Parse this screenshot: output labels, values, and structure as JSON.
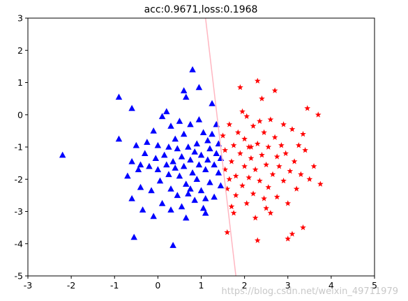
{
  "chart_data": {
    "type": "scatter",
    "title": "acc:0.9671,loss:0.1968",
    "xlim": [
      -3,
      5
    ],
    "ylim": [
      -5,
      3
    ],
    "xticks": [
      "-3",
      "-2",
      "-1",
      "0",
      "1",
      "2",
      "3",
      "4",
      "5"
    ],
    "yticks": [
      "3",
      "2",
      "1",
      "0",
      "-1",
      "-2",
      "-3",
      "-4",
      "-5"
    ],
    "grid": false,
    "legend": "none",
    "decision_boundary": {
      "x": [
        1.1,
        1.8
      ],
      "y": [
        3,
        -5
      ],
      "color": "#ffb6c1"
    },
    "series": [
      {
        "marker": "triangle",
        "color": "#0000ff",
        "points": [
          [
            -2.2,
            -1.25
          ],
          [
            -0.9,
            0.55
          ],
          [
            -0.9,
            -0.75
          ],
          [
            -0.7,
            -1.9
          ],
          [
            -0.6,
            -1.45
          ],
          [
            -0.6,
            -2.6
          ],
          [
            -0.55,
            -3.8
          ],
          [
            -0.6,
            0.2
          ],
          [
            -0.5,
            -0.95
          ],
          [
            -0.45,
            -1.7
          ],
          [
            -0.4,
            -1.55
          ],
          [
            -0.4,
            -2.25
          ],
          [
            -0.35,
            -2.95
          ],
          [
            -0.3,
            -1.2
          ],
          [
            -0.25,
            -0.85
          ],
          [
            -0.2,
            -1.6
          ],
          [
            -0.15,
            -2.35
          ],
          [
            -0.1,
            -0.5
          ],
          [
            -0.1,
            -3.15
          ],
          [
            -0.05,
            -1.35
          ],
          [
            0.0,
            -0.95
          ],
          [
            0.0,
            -1.7
          ],
          [
            0.05,
            -2.05
          ],
          [
            0.1,
            -2.75
          ],
          [
            0.1,
            -0.05
          ],
          [
            0.15,
            -1.25
          ],
          [
            0.2,
            -1.55
          ],
          [
            0.25,
            -1.0
          ],
          [
            0.25,
            -1.85
          ],
          [
            0.3,
            -0.35
          ],
          [
            0.3,
            -2.3
          ],
          [
            0.35,
            -1.45
          ],
          [
            0.35,
            -4.05
          ],
          [
            0.4,
            -0.75
          ],
          [
            0.4,
            -1.65
          ],
          [
            0.45,
            -2.5
          ],
          [
            0.45,
            -1.05
          ],
          [
            0.5,
            -0.2
          ],
          [
            0.5,
            -1.9
          ],
          [
            0.55,
            -2.85
          ],
          [
            0.55,
            -1.3
          ],
          [
            0.6,
            0.75
          ],
          [
            0.6,
            -0.6
          ],
          [
            0.6,
            -1.6
          ],
          [
            0.65,
            -2.15
          ],
          [
            0.65,
            -3.2
          ],
          [
            0.7,
            -1.0
          ],
          [
            0.7,
            -2.45
          ],
          [
            0.75,
            -1.4
          ],
          [
            0.75,
            -0.3
          ],
          [
            0.8,
            -1.8
          ],
          [
            0.8,
            1.4
          ],
          [
            0.85,
            -2.65
          ],
          [
            0.85,
            -1.15
          ],
          [
            0.9,
            -0.9
          ],
          [
            0.9,
            -2.0
          ],
          [
            0.95,
            -0.15
          ],
          [
            0.95,
            -1.55
          ],
          [
            1.0,
            -1.25
          ],
          [
            1.0,
            -2.35
          ],
          [
            1.05,
            -0.55
          ],
          [
            1.05,
            -2.9
          ],
          [
            1.1,
            -1.7
          ],
          [
            1.1,
            -3.05
          ],
          [
            1.15,
            -0.8
          ],
          [
            1.15,
            -1.4
          ],
          [
            1.2,
            -2.1
          ],
          [
            1.2,
            -1.05
          ],
          [
            1.25,
            0.35
          ],
          [
            1.25,
            -0.6
          ],
          [
            1.3,
            -1.55
          ],
          [
            1.3,
            -2.55
          ],
          [
            1.35,
            -0.3
          ],
          [
            1.35,
            -1.2
          ],
          [
            1.4,
            -0.9
          ],
          [
            1.4,
            -1.8
          ],
          [
            1.45,
            -2.2
          ],
          [
            1.45,
            -1.35
          ],
          [
            0.2,
            0.1
          ],
          [
            0.95,
            0.85
          ],
          [
            0.65,
            0.55
          ],
          [
            1.1,
            -2.6
          ],
          [
            0.3,
            -2.95
          ],
          [
            0.75,
            -2.3
          ]
        ]
      },
      {
        "marker": "star",
        "color": "#ff0000",
        "points": [
          [
            1.5,
            -0.65
          ],
          [
            1.55,
            -1.1
          ],
          [
            1.55,
            -1.7
          ],
          [
            1.6,
            -2.3
          ],
          [
            1.6,
            -3.65
          ],
          [
            1.65,
            -0.3
          ],
          [
            1.7,
            -1.45
          ],
          [
            1.7,
            -2.85
          ],
          [
            1.75,
            -0.95
          ],
          [
            1.8,
            -1.9
          ],
          [
            1.8,
            -2.5
          ],
          [
            1.85,
            -0.55
          ],
          [
            1.9,
            -1.2
          ],
          [
            1.9,
            0.85
          ],
          [
            1.95,
            -2.2
          ],
          [
            2.0,
            -0.75
          ],
          [
            2.0,
            -1.6
          ],
          [
            2.05,
            -2.75
          ],
          [
            2.05,
            -0.05
          ],
          [
            2.1,
            -1.0
          ],
          [
            2.1,
            -1.95
          ],
          [
            2.15,
            -1.35
          ],
          [
            2.2,
            -0.35
          ],
          [
            2.2,
            -2.45
          ],
          [
            2.25,
            -3.2
          ],
          [
            2.25,
            -1.7
          ],
          [
            2.3,
            -0.9
          ],
          [
            2.3,
            1.05
          ],
          [
            2.3,
            -3.9
          ],
          [
            2.35,
            -2.05
          ],
          [
            2.4,
            -1.25
          ],
          [
            2.4,
            0.5
          ],
          [
            2.45,
            -0.55
          ],
          [
            2.45,
            -2.6
          ],
          [
            2.5,
            -1.55
          ],
          [
            2.55,
            -1.0
          ],
          [
            2.55,
            -2.25
          ],
          [
            2.6,
            -0.15
          ],
          [
            2.6,
            -3.05
          ],
          [
            2.65,
            -1.85
          ],
          [
            2.7,
            -0.7
          ],
          [
            2.7,
            0.75
          ],
          [
            2.75,
            -1.3
          ],
          [
            2.75,
            -2.55
          ],
          [
            2.8,
            -1.6
          ],
          [
            2.85,
            -0.95
          ],
          [
            2.9,
            -2.05
          ],
          [
            2.9,
            -0.3
          ],
          [
            2.95,
            -1.2
          ],
          [
            3.0,
            -2.75
          ],
          [
            3.05,
            -1.75
          ],
          [
            3.1,
            -0.45
          ],
          [
            3.1,
            -3.7
          ],
          [
            3.15,
            -1.45
          ],
          [
            3.2,
            -2.3
          ],
          [
            3.25,
            -0.95
          ],
          [
            3.3,
            -1.85
          ],
          [
            3.35,
            -0.6
          ],
          [
            3.35,
            -3.5
          ],
          [
            3.45,
            0.2
          ],
          [
            3.5,
            -2.0
          ],
          [
            3.6,
            -1.6
          ],
          [
            3.7,
            0.0
          ],
          [
            3.75,
            -2.15
          ],
          [
            1.65,
            -2.0
          ],
          [
            2.15,
            -1.0
          ],
          [
            1.95,
            0.1
          ],
          [
            2.5,
            -2.9
          ],
          [
            3.0,
            -3.85
          ],
          [
            1.75,
            -3.05
          ],
          [
            3.4,
            -1.1
          ],
          [
            2.35,
            -0.2
          ]
        ]
      }
    ]
  },
  "watermark": "https://blog.csdn.net/weixin_49711979"
}
